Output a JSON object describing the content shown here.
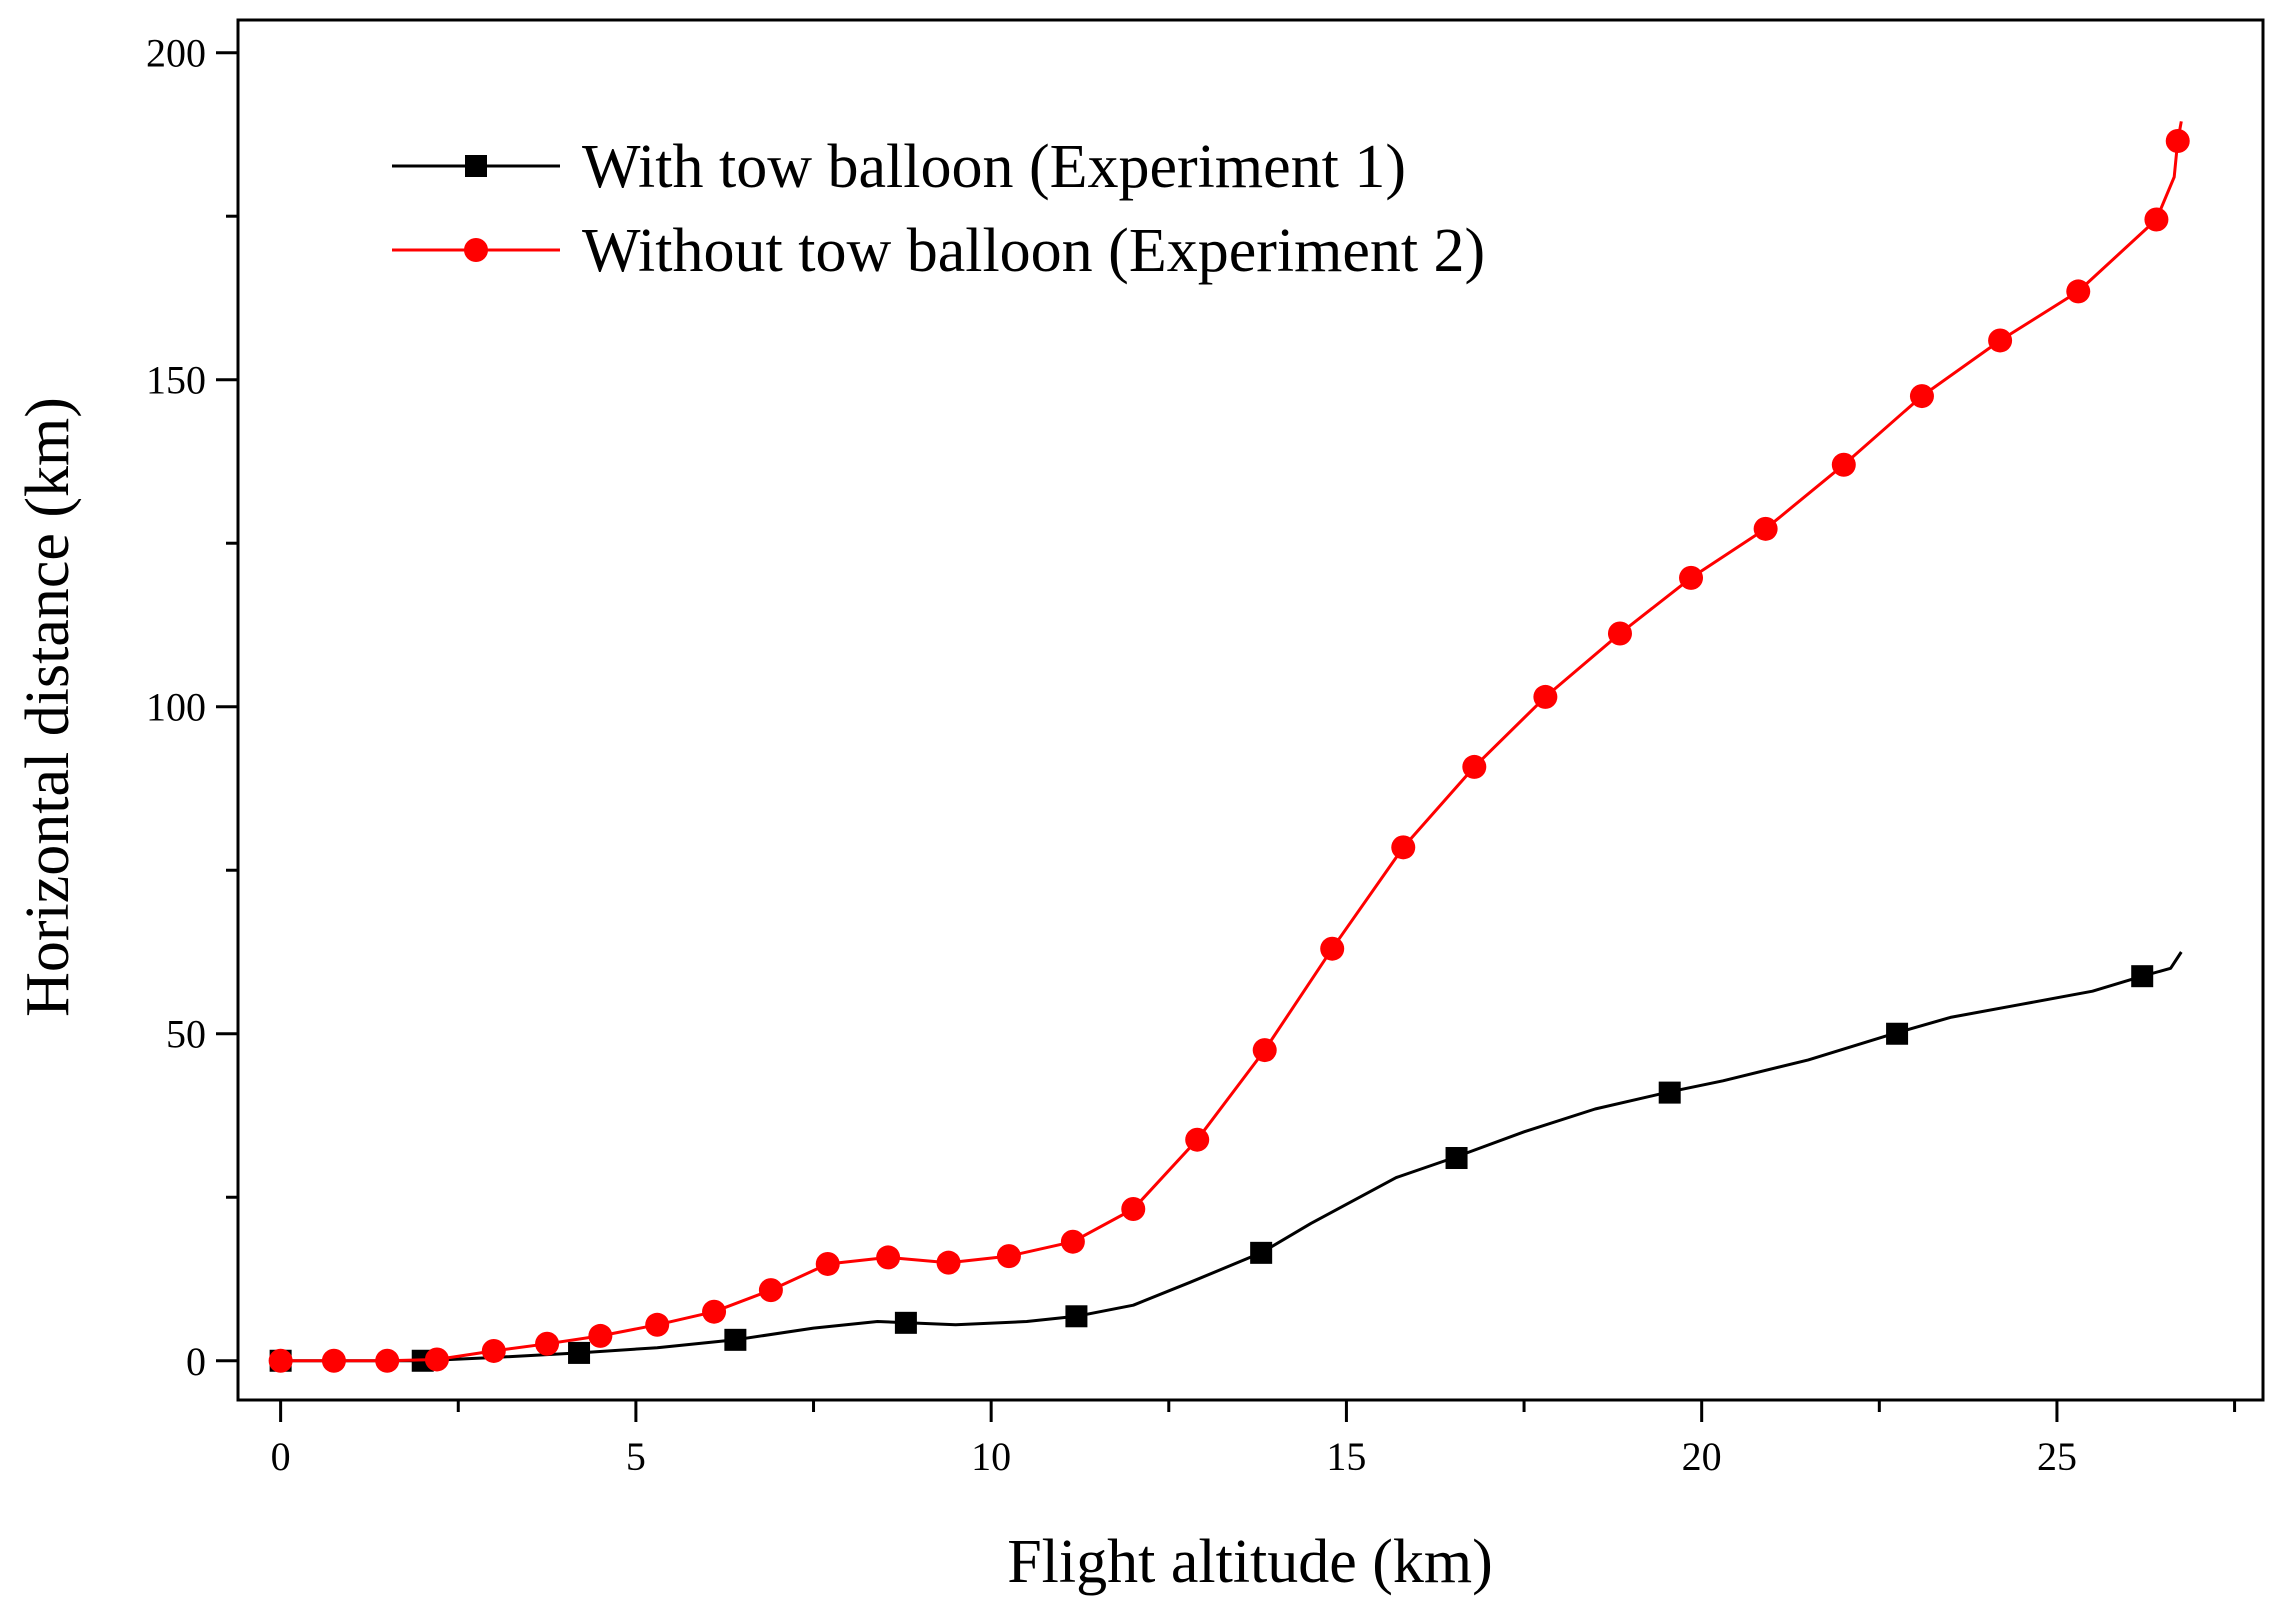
{
  "chart_data": {
    "type": "line",
    "title": "",
    "xlabel": "Flight altitude (km)",
    "ylabel": "Horizontal distance (km)",
    "xlim": [
      -0.6,
      27.9
    ],
    "ylim": [
      -6,
      205
    ],
    "xticks": [
      0,
      5,
      10,
      15,
      20,
      25
    ],
    "xtick_labels": [
      "0",
      "5",
      "10",
      "15",
      "20",
      "25"
    ],
    "yticks": [
      0,
      50,
      100,
      150,
      200
    ],
    "ytick_labels": [
      "0",
      "50",
      "100",
      "150",
      "200"
    ],
    "grid": false,
    "legend_position": "top-left",
    "series": [
      {
        "name": "With tow balloon (Experiment 1)",
        "color": "#000000",
        "marker": "square",
        "curve": [
          [
            0,
            0
          ],
          [
            2,
            0
          ],
          [
            3,
            0.5
          ],
          [
            4.2,
            1.2
          ],
          [
            5.3,
            2
          ],
          [
            6.4,
            3.2
          ],
          [
            7.5,
            5
          ],
          [
            8.4,
            6
          ],
          [
            9.5,
            5.5
          ],
          [
            10.5,
            6
          ],
          [
            11.2,
            6.8
          ],
          [
            12,
            8.5
          ],
          [
            12.8,
            12
          ],
          [
            13.8,
            16.5
          ],
          [
            14.5,
            21
          ],
          [
            15.7,
            28
          ],
          [
            16.5,
            31
          ],
          [
            17.5,
            35
          ],
          [
            18.5,
            38.5
          ],
          [
            19.5,
            41
          ],
          [
            20.3,
            42.8
          ],
          [
            21.5,
            46
          ],
          [
            22.7,
            50
          ],
          [
            23.5,
            52.5
          ],
          [
            24.5,
            54.5
          ],
          [
            25.5,
            56.5
          ],
          [
            26.2,
            58.8
          ],
          [
            26.6,
            60
          ],
          [
            26.75,
            62.5
          ]
        ],
        "markers": [
          [
            0,
            0
          ],
          [
            2,
            0
          ],
          [
            4.2,
            1.2
          ],
          [
            6.4,
            3.2
          ],
          [
            8.8,
            5.8
          ],
          [
            11.2,
            6.8
          ],
          [
            13.8,
            16.5
          ],
          [
            16.55,
            31
          ],
          [
            19.55,
            41
          ],
          [
            22.75,
            50
          ],
          [
            26.2,
            58.8
          ]
        ]
      },
      {
        "name": "Without tow balloon (Experiment 2)",
        "color": "#ff0000",
        "marker": "circle",
        "curve": [
          [
            0,
            0
          ],
          [
            0.75,
            0
          ],
          [
            1.5,
            0
          ],
          [
            2.2,
            0.2
          ],
          [
            3,
            1.5
          ],
          [
            3.75,
            2.6
          ],
          [
            4.5,
            3.8
          ],
          [
            5.3,
            5.5
          ],
          [
            6.1,
            7.5
          ],
          [
            6.9,
            10.8
          ],
          [
            7.7,
            14.8
          ],
          [
            8.55,
            15.8
          ],
          [
            9.4,
            15
          ],
          [
            10.25,
            16
          ],
          [
            11.15,
            18.2
          ],
          [
            12,
            23.2
          ],
          [
            12.9,
            33.8
          ],
          [
            13.85,
            47.5
          ],
          [
            14.8,
            63
          ],
          [
            15.8,
            78.5
          ],
          [
            16.8,
            90.8
          ],
          [
            17.8,
            101.5
          ],
          [
            18.85,
            111.2
          ],
          [
            19.85,
            119.7
          ],
          [
            20.9,
            127.2
          ],
          [
            22,
            137
          ],
          [
            23.1,
            147.5
          ],
          [
            24.2,
            156
          ],
          [
            25.3,
            163.5
          ],
          [
            26.4,
            174.5
          ],
          [
            26.65,
            181
          ],
          [
            26.7,
            186.5
          ],
          [
            26.75,
            189.5
          ]
        ],
        "markers": [
          [
            0,
            0
          ],
          [
            0.75,
            0
          ],
          [
            1.5,
            0
          ],
          [
            2.2,
            0.2
          ],
          [
            3,
            1.5
          ],
          [
            3.75,
            2.6
          ],
          [
            4.5,
            3.8
          ],
          [
            5.3,
            5.5
          ],
          [
            6.1,
            7.5
          ],
          [
            6.9,
            10.8
          ],
          [
            7.7,
            14.8
          ],
          [
            8.55,
            15.8
          ],
          [
            9.4,
            15
          ],
          [
            10.25,
            16
          ],
          [
            11.15,
            18.2
          ],
          [
            12,
            23.2
          ],
          [
            12.9,
            33.8
          ],
          [
            13.85,
            47.5
          ],
          [
            14.8,
            63
          ],
          [
            15.8,
            78.5
          ],
          [
            16.8,
            90.8
          ],
          [
            17.8,
            101.5
          ],
          [
            18.85,
            111.2
          ],
          [
            19.85,
            119.7
          ],
          [
            20.9,
            127.2
          ],
          [
            22,
            137
          ],
          [
            23.1,
            147.5
          ],
          [
            24.2,
            156
          ],
          [
            25.3,
            163.5
          ],
          [
            26.4,
            174.5
          ],
          [
            26.7,
            186.5
          ]
        ]
      }
    ]
  }
}
